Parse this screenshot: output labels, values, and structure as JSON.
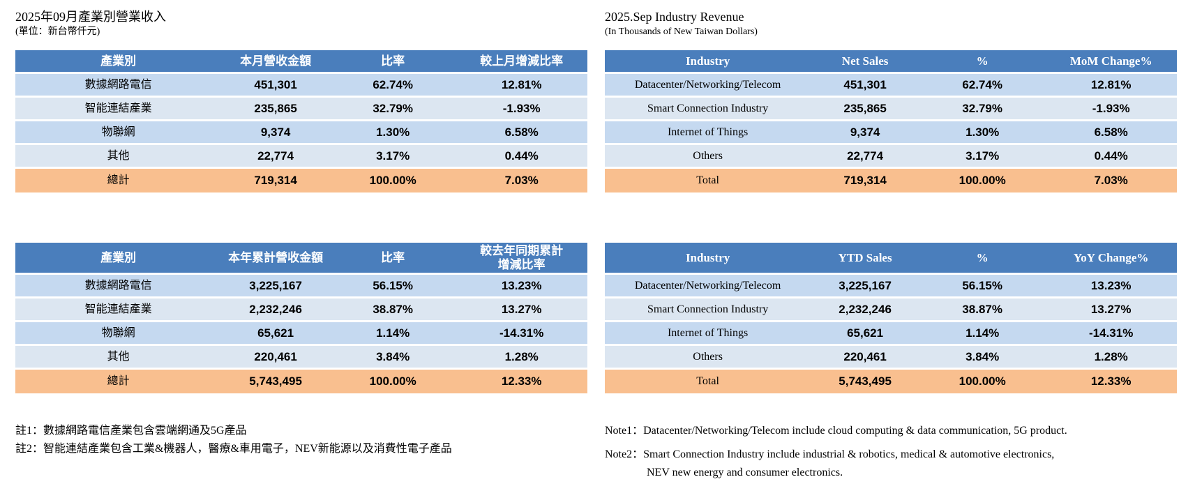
{
  "colors": {
    "header_bg": "#4a7ebc",
    "row_light": "#c5d9f0",
    "row_lighter": "#dce6f1",
    "total_bg": "#f9bf8f",
    "header_text": "#ffffff",
    "body_text": "#000000",
    "page_bg": "#ffffff"
  },
  "left": {
    "title": "2025年09月產業別營業收入",
    "subtitle": "(單位：新台幣仟元)",
    "tables": [
      {
        "headers": [
          "產業別",
          "本月營收金額",
          "比率",
          "較上月增減比率"
        ],
        "rows": [
          [
            "數據網路電信",
            "451,301",
            "62.74%",
            "12.81%"
          ],
          [
            "智能連結產業",
            "235,865",
            "32.79%",
            "-1.93%"
          ],
          [
            "物聯網",
            "9,374",
            "1.30%",
            "6.58%"
          ],
          [
            "其他",
            "22,774",
            "3.17%",
            "0.44%"
          ]
        ],
        "total": [
          "總計",
          "719,314",
          "100.00%",
          "7.03%"
        ]
      },
      {
        "headers": [
          "產業別",
          "本年累計營收金額",
          "比率",
          "較去年同期累計\n增減比率"
        ],
        "rows": [
          [
            "數據網路電信",
            "3,225,167",
            "56.15%",
            "13.23%"
          ],
          [
            "智能連結產業",
            "2,232,246",
            "38.87%",
            "13.27%"
          ],
          [
            "物聯網",
            "65,621",
            "1.14%",
            "-14.31%"
          ],
          [
            "其他",
            "220,461",
            "3.84%",
            "1.28%"
          ]
        ],
        "total": [
          "總計",
          "5,743,495",
          "100.00%",
          "12.33%"
        ]
      }
    ],
    "notes": [
      "註1：數據網路電信產業包含雲端網通及5G產品",
      "註2：智能連結產業包含工業&機器人，醫療&車用電子，NEV新能源以及消費性電子產品"
    ]
  },
  "right": {
    "title": "2025.Sep  Industry Revenue",
    "subtitle": "(In Thousands of New Taiwan Dollars)",
    "tables": [
      {
        "headers": [
          "Industry",
          "Net Sales",
          "%",
          "MoM Change%"
        ],
        "rows": [
          [
            "Datacenter/Networking/Telecom",
            "451,301",
            "62.74%",
            "12.81%"
          ],
          [
            "Smart Connection Industry",
            "235,865",
            "32.79%",
            "-1.93%"
          ],
          [
            "Internet of Things",
            "9,374",
            "1.30%",
            "6.58%"
          ],
          [
            "Others",
            "22,774",
            "3.17%",
            "0.44%"
          ]
        ],
        "total": [
          "Total",
          "719,314",
          "100.00%",
          "7.03%"
        ]
      },
      {
        "headers": [
          "Industry",
          "YTD Sales",
          "%",
          "YoY Change%"
        ],
        "rows": [
          [
            "Datacenter/Networking/Telecom",
            "3,225,167",
            "56.15%",
            "13.23%"
          ],
          [
            "Smart Connection Industry",
            "2,232,246",
            "38.87%",
            "13.27%"
          ],
          [
            "Internet of Things",
            "65,621",
            "1.14%",
            "-14.31%"
          ],
          [
            "Others",
            "220,461",
            "3.84%",
            "1.28%"
          ]
        ],
        "total": [
          "Total",
          "5,743,495",
          "100.00%",
          "12.33%"
        ]
      }
    ],
    "notes": [
      "Note1：Datacenter/Networking/Telecom include cloud computing & data communication, 5G product.",
      "Note2：Smart Connection Industry include industrial & robotics, medical & automotive electronics,\nNEV new energy and consumer electronics."
    ]
  }
}
